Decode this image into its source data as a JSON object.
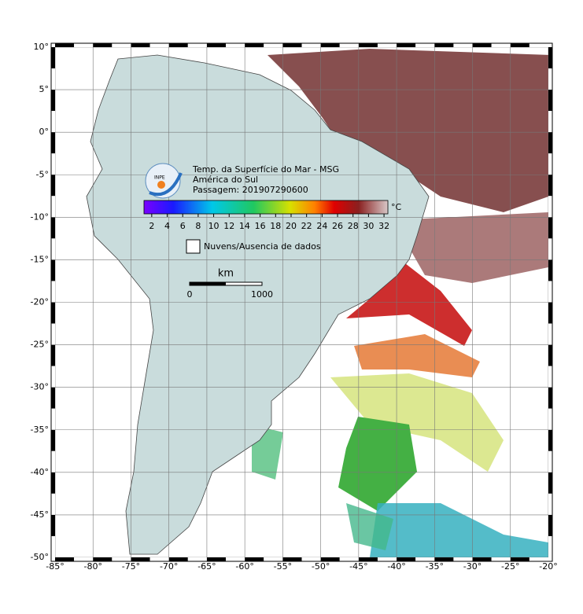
{
  "map": {
    "title": "Temp. da Superfície do Mar - MSG",
    "subtitle": "América do Sul",
    "pass": "Passagem: 201907290600",
    "logo": "INPE",
    "xlim": [
      -85,
      -20
    ],
    "ylim": [
      -50,
      10
    ],
    "xticks": [
      {
        "value": -85,
        "label": "-85°"
      },
      {
        "value": -80,
        "label": "-80°"
      },
      {
        "value": -75,
        "label": "-75°"
      },
      {
        "value": -70,
        "label": "-70°"
      },
      {
        "value": -65,
        "label": "-65°"
      },
      {
        "value": -60,
        "label": "-60°"
      },
      {
        "value": -55,
        "label": "-55°"
      },
      {
        "value": -50,
        "label": "-50°"
      },
      {
        "value": -45,
        "label": "-45°"
      },
      {
        "value": -40,
        "label": "-40°"
      },
      {
        "value": -35,
        "label": "-35°"
      },
      {
        "value": -30,
        "label": "-30°"
      },
      {
        "value": -25,
        "label": "-25°"
      },
      {
        "value": -20,
        "label": "-20°"
      }
    ],
    "yticks": [
      {
        "value": 10,
        "label": "10°"
      },
      {
        "value": 5,
        "label": "5°"
      },
      {
        "value": 0,
        "label": "0°"
      },
      {
        "value": -5,
        "label": "-5°"
      },
      {
        "value": -10,
        "label": "-10°"
      },
      {
        "value": -15,
        "label": "-15°"
      },
      {
        "value": -20,
        "label": "-20°"
      },
      {
        "value": -25,
        "label": "-25°"
      },
      {
        "value": -30,
        "label": "-30°"
      },
      {
        "value": -35,
        "label": "-35°"
      },
      {
        "value": -40,
        "label": "-40°"
      },
      {
        "value": -45,
        "label": "-45°"
      },
      {
        "value": -50,
        "label": "-50°"
      }
    ],
    "grid": true,
    "colorbar": {
      "unit": "°C",
      "lim": [
        1,
        32.5
      ],
      "ticks": [
        2,
        4,
        6,
        8,
        10,
        12,
        14,
        16,
        18,
        20,
        22,
        24,
        26,
        28,
        30,
        32
      ]
    },
    "legend": "Nuvens/Ausencia de dados",
    "scale": {
      "unit": "km",
      "ticks": [
        "0",
        "1000"
      ]
    }
  }
}
